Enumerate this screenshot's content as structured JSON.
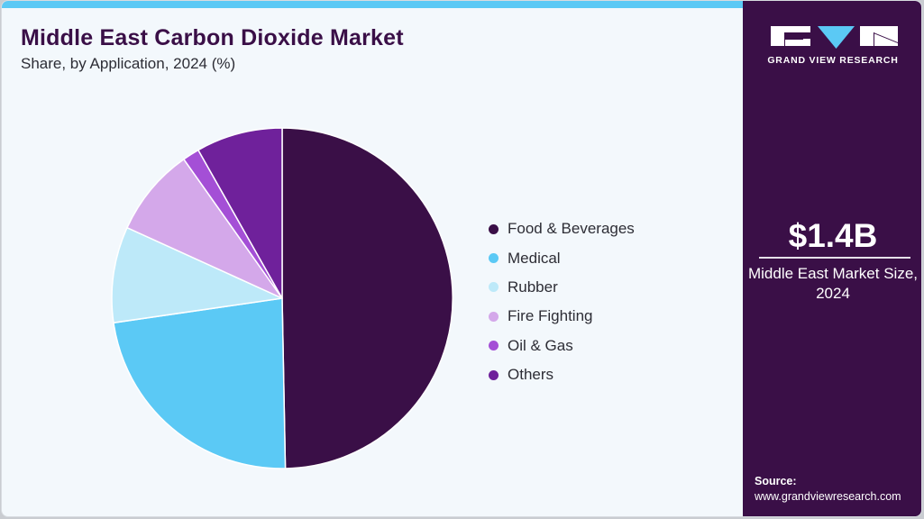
{
  "header": {
    "title": "Middle East Carbon Dioxide Market",
    "subtitle": "Share, by Application, 2024 (%)"
  },
  "colors": {
    "accent_stripe": "#5bc9f5",
    "brand_panel": "#3a0f47",
    "background": "#f3f8fc"
  },
  "chart_data": {
    "type": "pie",
    "title": "Middle East Carbon Dioxide Market",
    "subtitle": "Share, by Application, 2024 (%)",
    "categories": [
      "Food & Beverages",
      "Medical",
      "Rubber",
      "Fire Fighting",
      "Oil & Gas",
      "Others"
    ],
    "values": [
      49.7,
      23.0,
      9.1,
      8.4,
      1.6,
      8.2
    ],
    "colors": [
      "#3a0f47",
      "#5bc9f5",
      "#bde9f9",
      "#d4a8ea",
      "#a44fd6",
      "#6f219b"
    ],
    "start_angle": "12 o'clock",
    "direction": "clockwise",
    "legend_position": "right",
    "unit": "%"
  },
  "legend": {
    "items": [
      {
        "label": "Food & Beverages",
        "color": "#3a0f47"
      },
      {
        "label": "Medical",
        "color": "#5bc9f5"
      },
      {
        "label": "Rubber",
        "color": "#bde9f9"
      },
      {
        "label": "Fire Fighting",
        "color": "#d4a8ea"
      },
      {
        "label": "Oil & Gas",
        "color": "#a44fd6"
      },
      {
        "label": "Others",
        "color": "#6f219b"
      }
    ]
  },
  "side_panel": {
    "logo_text": "GRAND VIEW RESEARCH",
    "market_size_value": "$1.4B",
    "market_size_label": "Middle East Market Size, 2024",
    "source_label": "Source:",
    "source_url": "www.grandviewresearch.com"
  }
}
